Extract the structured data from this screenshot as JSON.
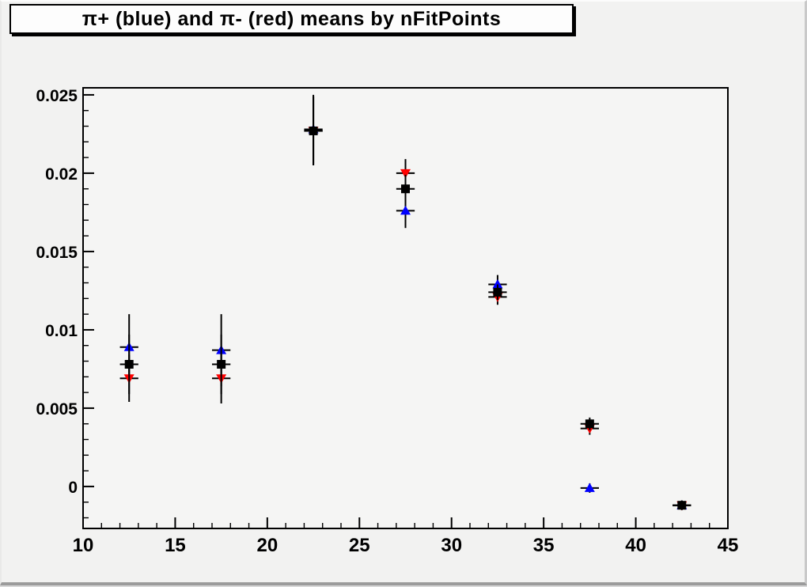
{
  "title": "π+ (blue) and π- (red) means by nFitPoints",
  "colors": {
    "canvas_bg": "#f2f2f1",
    "frame_bg": "#f5f5f4",
    "axis": "#000000",
    "title_box_bg": "#fdfdfd",
    "title_box_border": "#000000",
    "blue_series": "#0000ff",
    "red_series": "#ff0000",
    "black_series": "#000000"
  },
  "chart_data": {
    "type": "scatter",
    "title": "π+ (blue) and π- (red) means by nFitPoints",
    "xlabel": "",
    "ylabel": "",
    "xlim": [
      10,
      45
    ],
    "ylim": [
      -0.00268,
      0.02545
    ],
    "grid": false,
    "legend": "none (colors named in title)",
    "x_major_ticks": [
      10,
      15,
      20,
      25,
      30,
      35,
      40,
      45
    ],
    "x_major_labels": [
      "10",
      "15",
      "20",
      "25",
      "30",
      "35",
      "40",
      "45"
    ],
    "x_minor_step": 1,
    "y_major_ticks": [
      0,
      0.005,
      0.01,
      0.015,
      0.02,
      0.025
    ],
    "y_major_labels": [
      "0",
      "0.005",
      "0.01",
      "0.015",
      "0.02",
      "0.025"
    ],
    "y_minor_step": 0.001,
    "x": [
      12.5,
      17.5,
      22.5,
      27.5,
      32.5,
      37.5,
      42.5
    ],
    "ex": 0.5,
    "series": [
      {
        "name": "pi-plus-blue",
        "label": "π+ (blue)",
        "marker": "triangle-up",
        "color": "#0000ff",
        "y": [
          0.0089,
          0.0087,
          0.0228,
          0.0176,
          0.0129,
          -0.0001,
          -0.0012
        ],
        "ey": [
          0.0021,
          0.0023,
          0.0022,
          0.0011,
          0.0006,
          0.0003,
          0.0003
        ]
      },
      {
        "name": "pi-minus-red",
        "label": "π- (red)",
        "marker": "triangle-down",
        "color": "#ff0000",
        "y": [
          0.0069,
          0.0069,
          0.0227,
          0.02,
          0.0121,
          0.0037,
          -0.0012
        ],
        "ey": [
          0.0015,
          0.0016,
          0.0022,
          0.0009,
          0.0005,
          0.0004,
          0.0003
        ]
      },
      {
        "name": "black-squares",
        "label": "black squares",
        "marker": "square",
        "color": "#000000",
        "y": [
          0.0078,
          0.0078,
          0.0227,
          0.019,
          0.0124,
          0.004,
          -0.0012
        ],
        "ey": [
          0.0019,
          0.0019,
          0.0022,
          0.0009,
          0.0005,
          0.0004,
          0.0003
        ]
      }
    ]
  }
}
